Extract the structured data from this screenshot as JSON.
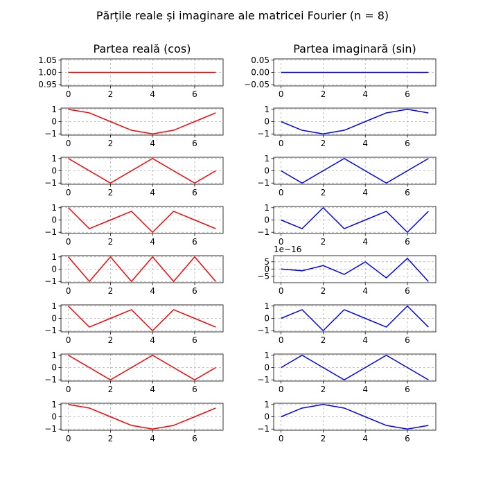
{
  "suptitle": "Părțile reale și imaginare ale matricei Fourier (n = 8)",
  "left_title": "Partea reală (cos)",
  "right_title": "Partea imaginară (sin)",
  "colors": {
    "real": "#ff0000",
    "imag": "#0000ff",
    "grid": "#b0b0b0"
  },
  "chart_data": {
    "type": "line",
    "layout": "8 rows x 2 columns of subplots",
    "x": [
      0,
      1,
      2,
      3,
      4,
      5,
      6,
      7
    ],
    "xticks": [
      "0",
      "2",
      "4",
      "6"
    ],
    "grid": true,
    "real_rows": [
      {
        "values": [
          1,
          1,
          1,
          1,
          1,
          1,
          1,
          1
        ],
        "ylim": [
          0.945,
          1.055
        ],
        "yticks": [
          "0.95",
          "1.00",
          "1.05"
        ]
      },
      {
        "values": [
          1,
          0.7071,
          0,
          -0.7071,
          -1,
          -0.7071,
          0,
          0.7071
        ],
        "ylim": [
          -1.1,
          1.1
        ],
        "yticks": [
          "−1",
          "0",
          "1"
        ]
      },
      {
        "values": [
          1,
          0,
          -1,
          0,
          1,
          0,
          -1,
          0
        ],
        "ylim": [
          -1.1,
          1.1
        ],
        "yticks": [
          "−1",
          "0",
          "1"
        ]
      },
      {
        "values": [
          1,
          -0.7071,
          0,
          0.7071,
          -1,
          0.7071,
          0,
          -0.7071
        ],
        "ylim": [
          -1.1,
          1.1
        ],
        "yticks": [
          "−1",
          "0",
          "1"
        ]
      },
      {
        "values": [
          1,
          -1,
          1,
          -1,
          1,
          -1,
          1,
          -1
        ],
        "ylim": [
          -1.1,
          1.1
        ],
        "yticks": [
          "−1",
          "0",
          "1"
        ]
      },
      {
        "values": [
          1,
          -0.7071,
          0,
          0.7071,
          -1,
          0.7071,
          0,
          -0.7071
        ],
        "ylim": [
          -1.1,
          1.1
        ],
        "yticks": [
          "−1",
          "0",
          "1"
        ]
      },
      {
        "values": [
          1,
          0,
          -1,
          0,
          1,
          0,
          -1,
          0
        ],
        "ylim": [
          -1.1,
          1.1
        ],
        "yticks": [
          "−1",
          "0",
          "1"
        ]
      },
      {
        "values": [
          1,
          0.7071,
          0,
          -0.7071,
          -1,
          -0.7071,
          0,
          0.7071
        ],
        "ylim": [
          -1.1,
          1.1
        ],
        "yticks": [
          "−1",
          "0",
          "1"
        ]
      }
    ],
    "imag_rows": [
      {
        "values": [
          0,
          0,
          0,
          0,
          0,
          0,
          0,
          0
        ],
        "ylim": [
          -0.055,
          0.055
        ],
        "yticks": [
          "−0.05",
          "0.00",
          "0.05"
        ]
      },
      {
        "values": [
          0,
          -0.7071,
          -1,
          -0.7071,
          0,
          0.7071,
          1,
          0.7071
        ],
        "ylim": [
          -1.1,
          1.1
        ],
        "yticks": [
          "−1",
          "0",
          "1"
        ]
      },
      {
        "values": [
          0,
          -1,
          0,
          1,
          0,
          -1,
          0,
          1
        ],
        "ylim": [
          -1.1,
          1.1
        ],
        "yticks": [
          "−1",
          "0",
          "1"
        ]
      },
      {
        "values": [
          0,
          -0.7071,
          1,
          -0.7071,
          0,
          0.7071,
          -1,
          0.7071
        ],
        "ylim": [
          -1.1,
          1.1
        ],
        "yticks": [
          "−1",
          "0",
          "1"
        ]
      },
      {
        "values": [
          0,
          -1.2,
          2.4,
          -3.7,
          4.9,
          -6.1,
          7.3,
          -8.6
        ],
        "ylim": [
          -9.4,
          9.2
        ],
        "yticks": [
          "−5",
          "0",
          "5"
        ],
        "offset_label": "1e−16"
      },
      {
        "values": [
          0,
          0.7071,
          -1,
          0.7071,
          0,
          -0.7071,
          1,
          -0.7071
        ],
        "ylim": [
          -1.1,
          1.1
        ],
        "yticks": [
          "−1",
          "0",
          "1"
        ]
      },
      {
        "values": [
          0,
          1,
          0,
          -1,
          0,
          1,
          0,
          -1
        ],
        "ylim": [
          -1.1,
          1.1
        ],
        "yticks": [
          "−1",
          "0",
          "1"
        ]
      },
      {
        "values": [
          0,
          0.7071,
          1,
          0.7071,
          0,
          -0.7071,
          -1,
          -0.7071
        ],
        "ylim": [
          -1.1,
          1.1
        ],
        "yticks": [
          "−1",
          "0",
          "1"
        ]
      }
    ]
  }
}
